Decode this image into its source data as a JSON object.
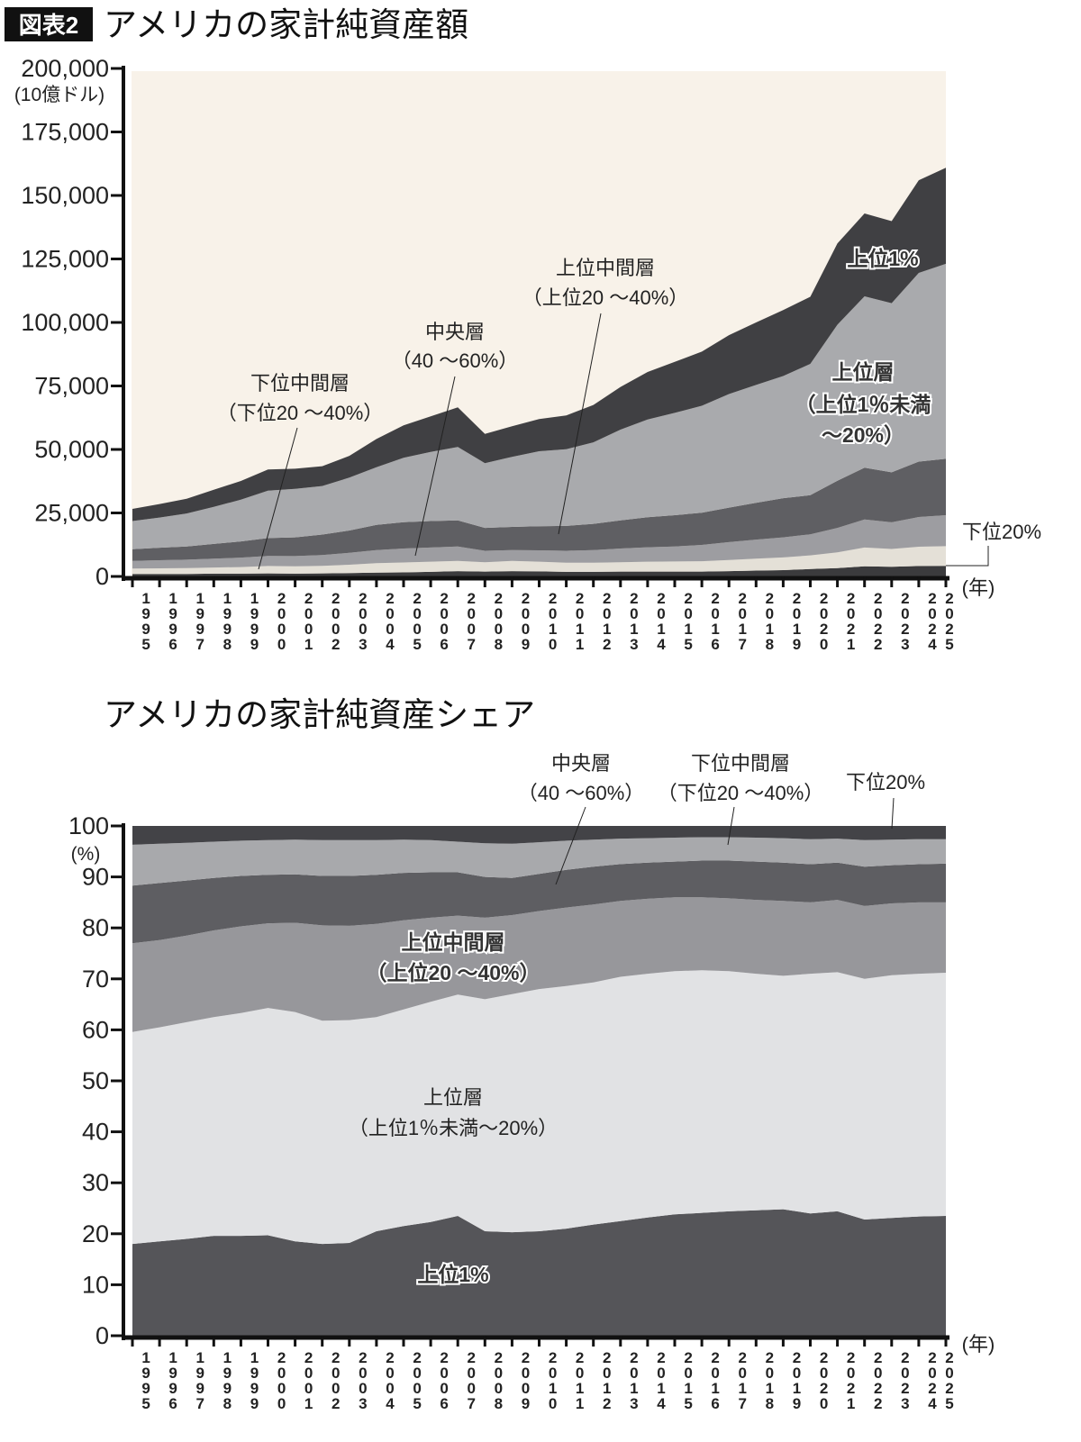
{
  "header": {
    "badge": "図表2",
    "title": "アメリカの家計純資産額"
  },
  "chart_data": [
    {
      "type": "area",
      "stacked": true,
      "title": "アメリカの家計純資産額",
      "ylabel": "(10億ドル)",
      "xlabel": "(年)",
      "ylim": [
        0,
        200000
      ],
      "yticks": [
        "200,000",
        "175,000",
        "150,000",
        "125,000",
        "100,000",
        "75,000",
        "50,000",
        "25,000",
        "0"
      ],
      "ytick_values": [
        200000,
        175000,
        150000,
        125000,
        100000,
        75000,
        50000,
        25000,
        0
      ],
      "x": [
        "1995",
        "1996",
        "1997",
        "1998",
        "1999",
        "2000",
        "2001",
        "2002",
        "2003",
        "2004",
        "2005",
        "2006",
        "2007",
        "2008",
        "2009",
        "2010",
        "2011",
        "2012",
        "2013",
        "2014",
        "2015",
        "2016",
        "2017",
        "2018",
        "2019",
        "2020",
        "2021",
        "2022",
        "2023",
        "2024",
        "2025"
      ],
      "background": "#f8f2e9",
      "grid": false,
      "legend": "none",
      "series": [
        {
          "name": "下位20%",
          "label_lines": [
            "下位20%"
          ],
          "color": "#3b3b3d",
          "values": [
            1000,
            1000,
            1000,
            1100,
            1100,
            1200,
            1100,
            1200,
            1300,
            1500,
            1600,
            1800,
            2100,
            1900,
            2100,
            2000,
            1800,
            1800,
            1900,
            1900,
            1900,
            1900,
            2100,
            2300,
            2500,
            2900,
            3300,
            4000,
            3800,
            4100,
            4200
          ]
        },
        {
          "name": "下位中間層",
          "label_lines": [
            "下位中間層",
            "（下位20 ～40%）"
          ],
          "color": "#e4e0d7",
          "values": [
            2100,
            2200,
            2300,
            2400,
            2600,
            2900,
            2900,
            3000,
            3300,
            3700,
            3900,
            4000,
            4000,
            3700,
            4000,
            3800,
            3600,
            3600,
            3700,
            3900,
            4000,
            4100,
            4400,
            4700,
            5000,
            5400,
            6200,
            7400,
            7000,
            7600,
            7700
          ]
        },
        {
          "name": "中央層",
          "label_lines": [
            "中央層",
            "（40 ～60%）"
          ],
          "color": "#9d9da1",
          "values": [
            3000,
            3200,
            3300,
            3500,
            3700,
            4000,
            4000,
            4200,
            4700,
            5200,
            5500,
            5600,
            5700,
            4500,
            4300,
            4500,
            4700,
            5000,
            5400,
            5700,
            5900,
            6400,
            7000,
            7500,
            7900,
            8300,
            9600,
            11000,
            10500,
            11700,
            12200
          ]
        },
        {
          "name": "上位中間層",
          "label_lines": [
            "上位中間層",
            "（上位20 ～40%）"
          ],
          "color": "#5f5f63",
          "values": [
            4600,
            4900,
            5200,
            5800,
            6400,
            7000,
            7400,
            8100,
            8800,
            9900,
            10400,
            10400,
            10300,
            9000,
            9100,
            9500,
            9800,
            10300,
            11100,
            11800,
            12300,
            12700,
            13600,
            14500,
            15400,
            15400,
            18600,
            20400,
            19700,
            21800,
            22200
          ]
        },
        {
          "name": "上位層",
          "label_lines": [
            "上位層",
            "（上位1％未満",
            "～20%）"
          ],
          "color": "#a9aaad",
          "values": [
            11100,
            11900,
            13000,
            14600,
            16400,
            18700,
            19100,
            19100,
            20800,
            22700,
            25300,
            27200,
            28900,
            25500,
            27600,
            29500,
            30200,
            32100,
            35700,
            38500,
            40300,
            42100,
            44700,
            46400,
            48100,
            51700,
            61400,
            67500,
            66600,
            74300,
            76800
          ]
        },
        {
          "name": "上位1%",
          "label_lines": [
            "上位1%"
          ],
          "color": "#404043",
          "values": [
            4800,
            5300,
            5800,
            6700,
            7400,
            8300,
            7900,
            7800,
            8600,
            11100,
            12800,
            14000,
            15600,
            11500,
            12000,
            12700,
            13300,
            14700,
            16800,
            18700,
            20100,
            21300,
            23200,
            24600,
            26000,
            26400,
            32000,
            32600,
            32300,
            36500,
            37800
          ]
        }
      ]
    },
    {
      "type": "area",
      "stacked": true,
      "title": "アメリカの家計純資産シェア",
      "ylabel": "(%)",
      "xlabel": "(年)",
      "ylim": [
        0,
        100
      ],
      "yticks": [
        "100",
        "90",
        "80",
        "70",
        "60",
        "50",
        "40",
        "30",
        "20",
        "10",
        "0"
      ],
      "ytick_values": [
        100,
        90,
        80,
        70,
        60,
        50,
        40,
        30,
        20,
        10,
        0
      ],
      "x": [
        "1995",
        "1996",
        "1997",
        "1998",
        "1999",
        "2000",
        "2001",
        "2002",
        "2003",
        "2004",
        "2005",
        "2006",
        "2007",
        "2008",
        "2009",
        "2010",
        "2011",
        "2012",
        "2013",
        "2014",
        "2015",
        "2016",
        "2017",
        "2018",
        "2019",
        "2020",
        "2021",
        "2022",
        "2023",
        "2024",
        "2025"
      ],
      "grid": false,
      "legend": "none",
      "series": [
        {
          "name": "上位1%",
          "label_lines": [
            "上位1%"
          ],
          "color": "#555559",
          "values": [
            18.0,
            18.5,
            19.0,
            19.6,
            19.6,
            19.7,
            18.5,
            18.0,
            18.2,
            20.5,
            21.5,
            22.3,
            23.5,
            20.5,
            20.3,
            20.5,
            21.0,
            21.8,
            22.5,
            23.2,
            23.8,
            24.1,
            24.4,
            24.6,
            24.8,
            24.0,
            24.4,
            22.8,
            23.1,
            23.4,
            23.5
          ]
        },
        {
          "name": "上位層",
          "label_lines": [
            "上位層",
            "（上位1％未満～20%）"
          ],
          "color": "#e1e2e4",
          "values": [
            41.6,
            42.0,
            42.5,
            42.9,
            43.7,
            44.6,
            45.0,
            43.8,
            43.7,
            42.0,
            42.5,
            43.2,
            43.4,
            45.5,
            46.7,
            47.5,
            47.6,
            47.5,
            47.9,
            47.8,
            47.7,
            47.6,
            47.1,
            46.4,
            45.8,
            47.0,
            46.9,
            47.2,
            47.6,
            47.6,
            47.7
          ]
        },
        {
          "name": "上位中間層",
          "label_lines": [
            "上位中間層",
            "（上位20 ～40%）"
          ],
          "color": "#97979b",
          "values": [
            17.4,
            17.1,
            17.0,
            17.0,
            17.0,
            16.6,
            17.5,
            18.7,
            18.5,
            18.3,
            17.5,
            16.5,
            15.5,
            16.0,
            15.5,
            15.3,
            15.4,
            15.3,
            14.9,
            14.7,
            14.5,
            14.3,
            14.3,
            14.5,
            14.7,
            14.0,
            14.2,
            14.3,
            14.1,
            14.0,
            13.8
          ]
        },
        {
          "name": "中央層",
          "label_lines": [
            "中央層",
            "（40 ～60%）"
          ],
          "color": "#5e5e62",
          "values": [
            11.3,
            11.2,
            10.8,
            10.3,
            9.9,
            9.5,
            9.5,
            9.7,
            9.8,
            9.6,
            9.3,
            8.9,
            8.5,
            8.0,
            7.3,
            7.3,
            7.4,
            7.4,
            7.2,
            7.1,
            7.0,
            7.2,
            7.4,
            7.5,
            7.5,
            7.5,
            7.3,
            7.7,
            7.5,
            7.5,
            7.6
          ]
        },
        {
          "name": "下位中間層",
          "label_lines": [
            "下位中間層",
            "（下位20 ～40%）"
          ],
          "color": "#a8a9ac",
          "values": [
            8.0,
            7.7,
            7.4,
            7.1,
            6.9,
            6.8,
            6.8,
            7.0,
            7.0,
            6.8,
            6.5,
            6.3,
            6.0,
            6.6,
            6.7,
            6.2,
            5.7,
            5.3,
            5.0,
            4.8,
            4.7,
            4.6,
            4.6,
            4.7,
            4.8,
            4.9,
            4.7,
            5.2,
            5.0,
            4.9,
            4.8
          ]
        },
        {
          "name": "下位20%",
          "label_lines": [
            "下位20%"
          ],
          "color": "#434347",
          "values": [
            3.7,
            3.5,
            3.3,
            3.1,
            2.9,
            2.8,
            2.7,
            2.8,
            2.8,
            2.8,
            2.7,
            2.8,
            3.1,
            3.4,
            3.5,
            3.2,
            2.9,
            2.7,
            2.5,
            2.4,
            2.3,
            2.2,
            2.2,
            2.3,
            2.4,
            2.6,
            2.5,
            2.8,
            2.7,
            2.6,
            2.6
          ]
        }
      ]
    }
  ]
}
